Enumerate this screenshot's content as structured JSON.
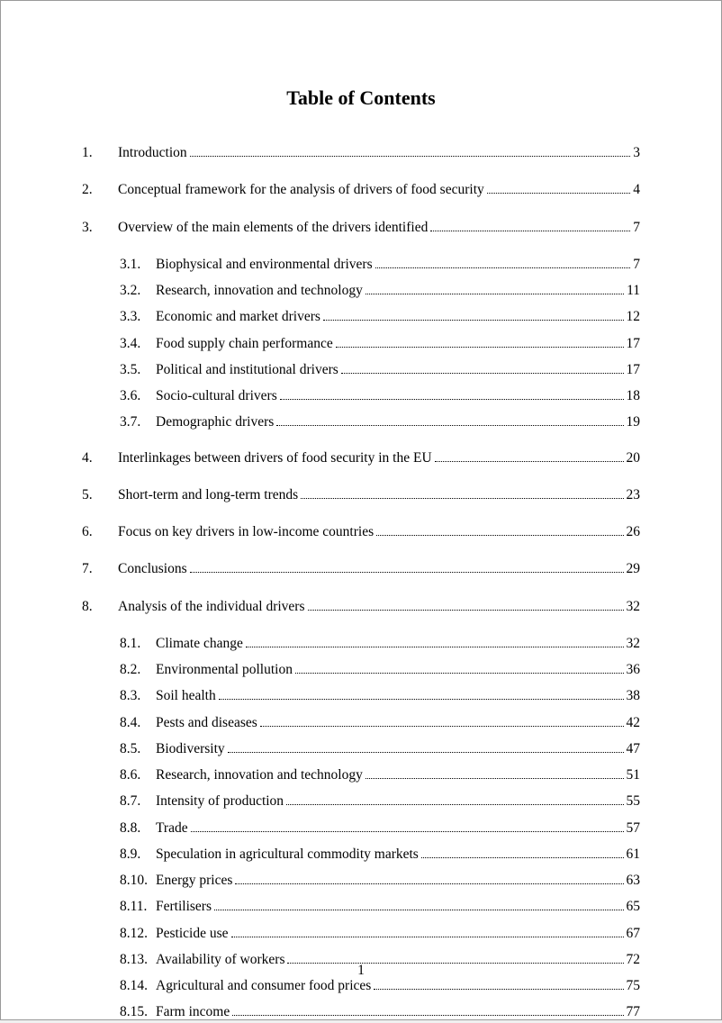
{
  "title": "Table of Contents",
  "page_number": "1",
  "entries": [
    {
      "level": 1,
      "num": "1.",
      "text": "Introduction",
      "page": "3"
    },
    {
      "level": 1,
      "num": "2.",
      "text": "Conceptual framework for the analysis of drivers of food security",
      "page": "4"
    },
    {
      "level": 1,
      "num": "3.",
      "text": "Overview of the main elements of the drivers identified",
      "page": "7"
    },
    {
      "level": 2,
      "num": "3.1.",
      "text": "Biophysical and environmental drivers",
      "page": "7"
    },
    {
      "level": 2,
      "num": "3.2.",
      "text": "Research, innovation and technology",
      "page": "11"
    },
    {
      "level": 2,
      "num": "3.3.",
      "text": "Economic and market drivers",
      "page": "12"
    },
    {
      "level": 2,
      "num": "3.4.",
      "text": "Food supply chain performance",
      "page": "17"
    },
    {
      "level": 2,
      "num": "3.5.",
      "text": "Political and institutional drivers",
      "page": "17"
    },
    {
      "level": 2,
      "num": "3.6.",
      "text": "Socio-cultural drivers",
      "page": "18"
    },
    {
      "level": 2,
      "num": "3.7.",
      "text": "Demographic drivers",
      "page": "19"
    },
    {
      "level": 1,
      "num": "4.",
      "text": "Interlinkages between drivers of food security in the EU",
      "page": "20"
    },
    {
      "level": 1,
      "num": "5.",
      "text": "Short-term and long-term trends",
      "page": "23"
    },
    {
      "level": 1,
      "num": "6.",
      "text": "Focus on key drivers in low-income countries",
      "page": "26"
    },
    {
      "level": 1,
      "num": "7.",
      "text": "Conclusions",
      "page": "29"
    },
    {
      "level": 1,
      "num": "8.",
      "text": "Analysis of the individual drivers",
      "page": "32"
    },
    {
      "level": 2,
      "num": "8.1.",
      "text": "Climate change",
      "page": "32"
    },
    {
      "level": 2,
      "num": "8.2.",
      "text": "Environmental pollution",
      "page": "36"
    },
    {
      "level": 2,
      "num": "8.3.",
      "text": "Soil health",
      "page": "38"
    },
    {
      "level": 2,
      "num": "8.4.",
      "text": "Pests and diseases",
      "page": "42"
    },
    {
      "level": 2,
      "num": "8.5.",
      "text": "Biodiversity",
      "page": "47"
    },
    {
      "level": 2,
      "num": "8.6.",
      "text": "Research, innovation and technology",
      "page": "51"
    },
    {
      "level": 2,
      "num": "8.7.",
      "text": "Intensity of production",
      "page": "55"
    },
    {
      "level": 2,
      "num": "8.8.",
      "text": "Trade",
      "page": "57"
    },
    {
      "level": 2,
      "num": "8.9.",
      "text": "Speculation in agricultural commodity markets",
      "page": "61"
    },
    {
      "level": 2,
      "num": "8.10.",
      "text": "Energy prices",
      "page": "63"
    },
    {
      "level": 2,
      "num": "8.11.",
      "text": "Fertilisers",
      "page": "65"
    },
    {
      "level": 2,
      "num": "8.12.",
      "text": "Pesticide use",
      "page": "67"
    },
    {
      "level": 2,
      "num": "8.13.",
      "text": "Availability of workers",
      "page": "72"
    },
    {
      "level": 2,
      "num": "8.14.",
      "text": "Agricultural and consumer food prices",
      "page": "75"
    },
    {
      "level": 2,
      "num": "8.15.",
      "text": "Farm income",
      "page": "77"
    }
  ]
}
